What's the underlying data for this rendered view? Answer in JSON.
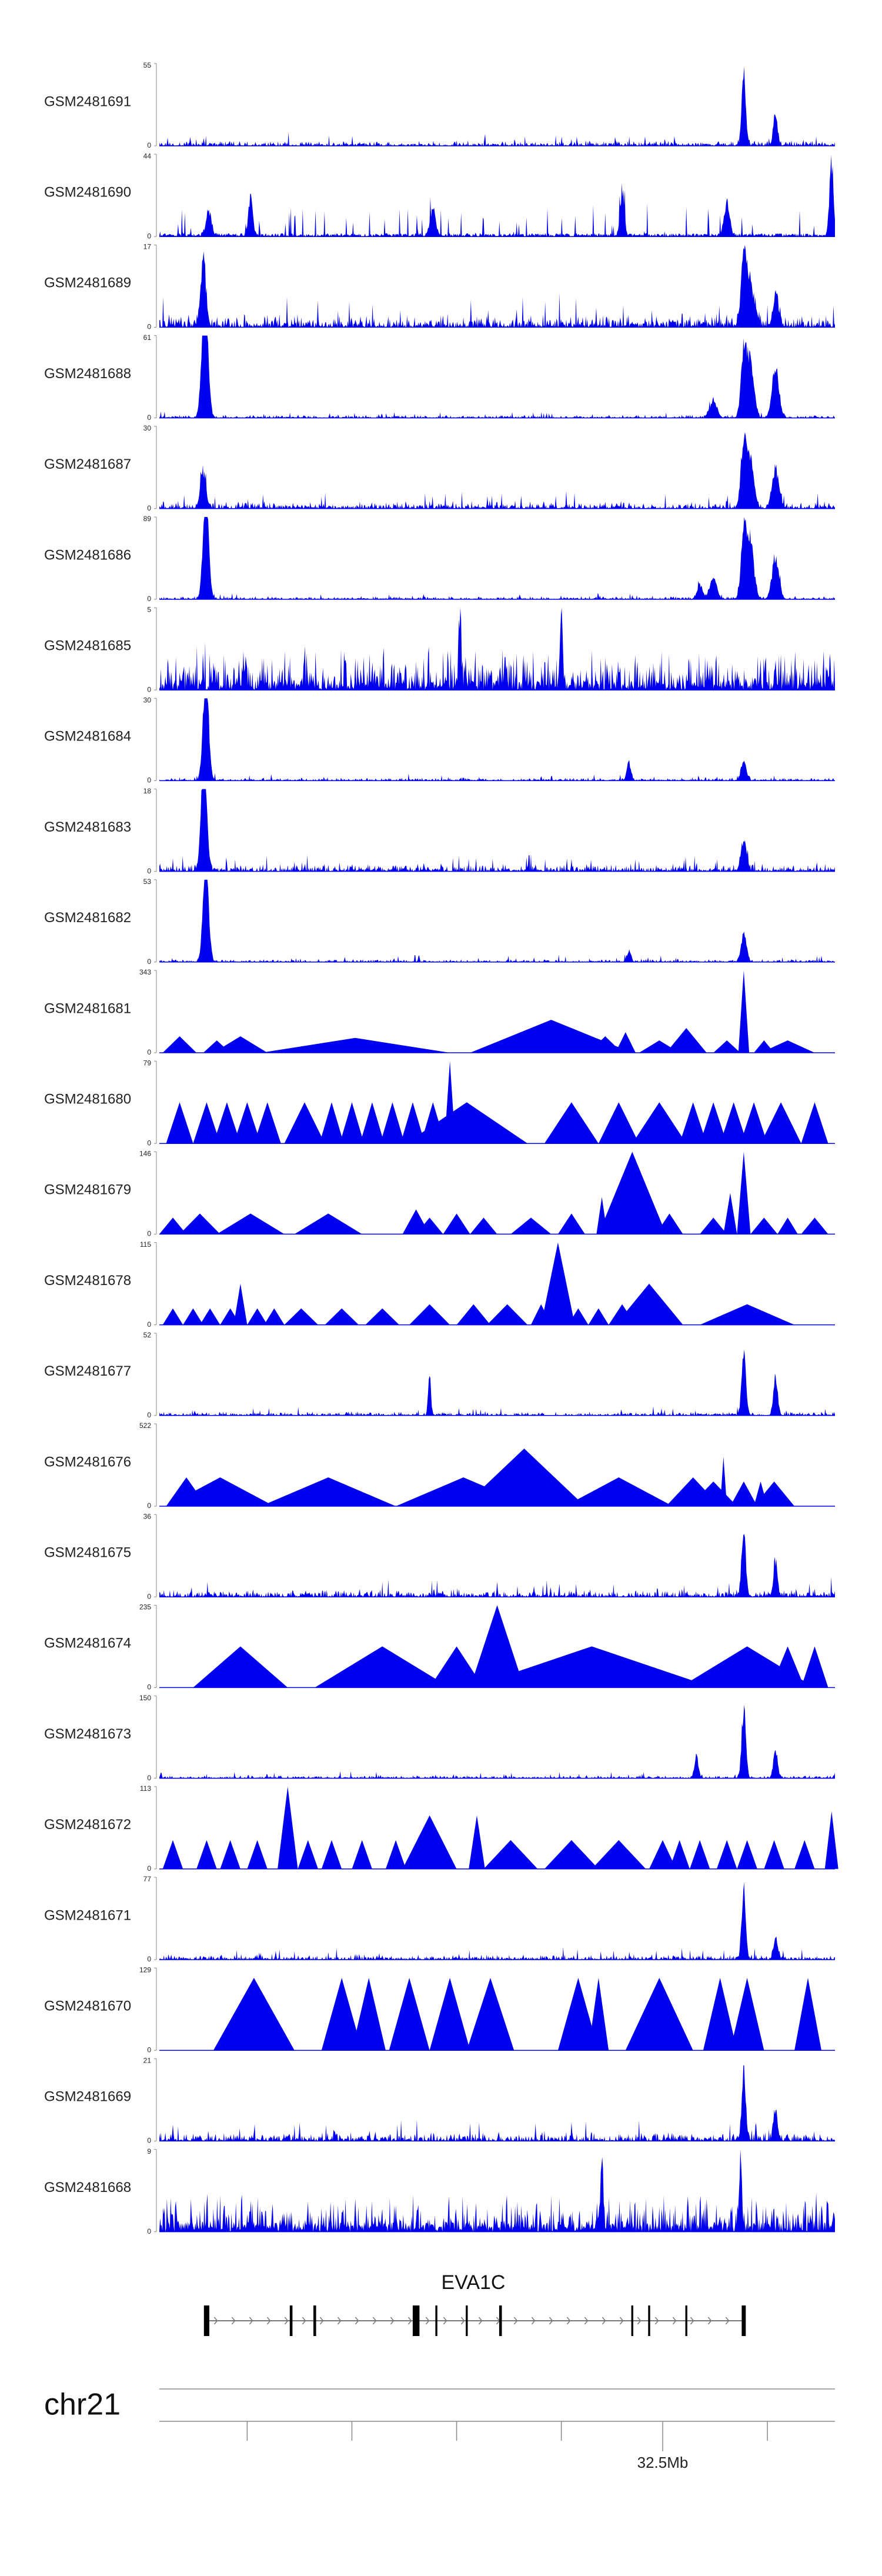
{
  "chart_data": {
    "type": "area",
    "title": "",
    "colors": {
      "signal": "#0000ee",
      "axis": "#888888",
      "text": "#222222"
    },
    "tracks": [
      {
        "name": "GSM2481691",
        "ymax": "55",
        "ymin": "0",
        "style": "dense",
        "noise": 0.07,
        "peaks": [
          [
            0.865,
            1.0,
            0.003
          ],
          [
            0.912,
            0.45,
            0.003
          ]
        ]
      },
      {
        "name": "GSM2481690",
        "ymax": "44",
        "ymin": "0",
        "style": "spiky",
        "noise": 0.25,
        "peaks": [
          [
            0.073,
            0.35,
            0.004
          ],
          [
            0.135,
            0.55,
            0.003
          ],
          [
            0.405,
            0.35,
            0.004
          ],
          [
            0.685,
            0.6,
            0.003
          ],
          [
            0.84,
            0.45,
            0.004
          ],
          [
            0.995,
            1.0,
            0.003
          ]
        ]
      },
      {
        "name": "GSM2481689",
        "ymax": "17",
        "ymin": "0",
        "style": "dense",
        "noise": 0.18,
        "peaks": [
          [
            0.065,
            0.9,
            0.004
          ],
          [
            0.865,
            0.95,
            0.004
          ],
          [
            0.875,
            0.55,
            0.006
          ],
          [
            0.913,
            0.45,
            0.004
          ]
        ]
      },
      {
        "name": "GSM2481688",
        "ymax": "61",
        "ymin": "0",
        "style": "dense",
        "noise": 0.04,
        "peaks": [
          [
            0.065,
            0.85,
            0.004
          ],
          [
            0.068,
            0.95,
            0.003
          ],
          [
            0.07,
            0.65,
            0.004
          ],
          [
            0.82,
            0.25,
            0.005
          ],
          [
            0.865,
            0.95,
            0.004
          ],
          [
            0.875,
            0.8,
            0.005
          ],
          [
            0.912,
            0.75,
            0.005
          ]
        ]
      },
      {
        "name": "GSM2481687",
        "ymax": "30",
        "ymin": "0",
        "style": "dense",
        "noise": 0.1,
        "peaks": [
          [
            0.065,
            0.5,
            0.004
          ],
          [
            0.865,
            0.95,
            0.004
          ],
          [
            0.875,
            0.65,
            0.005
          ],
          [
            0.912,
            0.55,
            0.005
          ]
        ]
      },
      {
        "name": "GSM2481686",
        "ymax": "89",
        "ymin": "0",
        "style": "dense",
        "noise": 0.04,
        "peaks": [
          [
            0.068,
            0.9,
            0.004
          ],
          [
            0.07,
            0.7,
            0.004
          ],
          [
            0.8,
            0.2,
            0.004
          ],
          [
            0.82,
            0.3,
            0.005
          ],
          [
            0.865,
            0.95,
            0.004
          ],
          [
            0.875,
            0.8,
            0.005
          ],
          [
            0.912,
            0.6,
            0.005
          ]
        ]
      },
      {
        "name": "GSM2481685",
        "ymax": "5",
        "ymin": "0",
        "style": "uniform",
        "noise": 0.6,
        "peaks": [
          [
            0.595,
            1.0,
            0.002
          ],
          [
            0.445,
            0.9,
            0.002
          ]
        ]
      },
      {
        "name": "GSM2481684",
        "ymax": "30",
        "ymin": "0",
        "style": "dense",
        "noise": 0.04,
        "peaks": [
          [
            0.068,
            0.95,
            0.004
          ],
          [
            0.07,
            0.6,
            0.004
          ],
          [
            0.695,
            0.25,
            0.003
          ],
          [
            0.865,
            0.25,
            0.004
          ]
        ]
      },
      {
        "name": "GSM2481683",
        "ymax": "18",
        "ymin": "0",
        "style": "dense",
        "noise": 0.1,
        "peaks": [
          [
            0.065,
            0.95,
            0.004
          ],
          [
            0.068,
            0.6,
            0.004
          ],
          [
            0.865,
            0.4,
            0.004
          ]
        ]
      },
      {
        "name": "GSM2481682",
        "ymax": "53",
        "ymin": "0",
        "style": "dense",
        "noise": 0.04,
        "peaks": [
          [
            0.068,
            0.95,
            0.004
          ],
          [
            0.07,
            0.6,
            0.004
          ],
          [
            0.695,
            0.15,
            0.003
          ],
          [
            0.865,
            0.4,
            0.004
          ]
        ]
      },
      {
        "name": "GSM2481681",
        "ymax": "343",
        "ymin": "0",
        "style": "tri",
        "peaks": [
          [
            0.03,
            0.2,
            0.025
          ],
          [
            0.085,
            0.15,
            0.02
          ],
          [
            0.12,
            0.2,
            0.04
          ],
          [
            0.29,
            0.18,
            0.14
          ],
          [
            0.58,
            0.4,
            0.12
          ],
          [
            0.62,
            0.15,
            0.02
          ],
          [
            0.66,
            0.2,
            0.025
          ],
          [
            0.69,
            0.25,
            0.015
          ],
          [
            0.74,
            0.15,
            0.03
          ],
          [
            0.78,
            0.3,
            0.03
          ],
          [
            0.84,
            0.15,
            0.02
          ],
          [
            0.865,
            1.0,
            0.008
          ],
          [
            0.895,
            0.15,
            0.015
          ],
          [
            0.93,
            0.15,
            0.04
          ]
        ]
      },
      {
        "name": "GSM2481680",
        "ymax": "79",
        "ymin": "0",
        "style": "tri",
        "peaks": [
          [
            0.03,
            0.5,
            0.02
          ],
          [
            0.07,
            0.5,
            0.02
          ],
          [
            0.1,
            0.5,
            0.02
          ],
          [
            0.13,
            0.5,
            0.02
          ],
          [
            0.16,
            0.5,
            0.02
          ],
          [
            0.215,
            0.5,
            0.03
          ],
          [
            0.255,
            0.5,
            0.018
          ],
          [
            0.285,
            0.5,
            0.018
          ],
          [
            0.315,
            0.5,
            0.018
          ],
          [
            0.345,
            0.5,
            0.018
          ],
          [
            0.375,
            0.5,
            0.018
          ],
          [
            0.405,
            0.5,
            0.018
          ],
          [
            0.43,
            1.0,
            0.008
          ],
          [
            0.455,
            0.5,
            0.09
          ],
          [
            0.61,
            0.5,
            0.04
          ],
          [
            0.68,
            0.5,
            0.03
          ],
          [
            0.74,
            0.5,
            0.04
          ],
          [
            0.79,
            0.5,
            0.02
          ],
          [
            0.82,
            0.5,
            0.02
          ],
          [
            0.85,
            0.5,
            0.02
          ],
          [
            0.88,
            0.5,
            0.02
          ],
          [
            0.92,
            0.5,
            0.03
          ],
          [
            0.97,
            0.5,
            0.02
          ]
        ]
      },
      {
        "name": "GSM2481679",
        "ymax": "146",
        "ymin": "0",
        "style": "tri",
        "peaks": [
          [
            0.02,
            0.2,
            0.02
          ],
          [
            0.06,
            0.25,
            0.03
          ],
          [
            0.135,
            0.25,
            0.05
          ],
          [
            0.25,
            0.25,
            0.05
          ],
          [
            0.38,
            0.3,
            0.02
          ],
          [
            0.4,
            0.2,
            0.02
          ],
          [
            0.44,
            0.25,
            0.02
          ],
          [
            0.48,
            0.2,
            0.02
          ],
          [
            0.55,
            0.2,
            0.03
          ],
          [
            0.61,
            0.25,
            0.02
          ],
          [
            0.655,
            0.45,
            0.008
          ],
          [
            0.675,
            0.2,
            0.015
          ],
          [
            0.7,
            1.0,
            0.05
          ],
          [
            0.755,
            0.25,
            0.02
          ],
          [
            0.82,
            0.2,
            0.02
          ],
          [
            0.845,
            0.5,
            0.01
          ],
          [
            0.865,
            1.0,
            0.01
          ],
          [
            0.895,
            0.2,
            0.02
          ],
          [
            0.93,
            0.2,
            0.015
          ],
          [
            0.97,
            0.2,
            0.02
          ]
        ]
      },
      {
        "name": "GSM2481678",
        "ymax": "115",
        "ymin": "0",
        "style": "tri",
        "peaks": [
          [
            0.02,
            0.2,
            0.015
          ],
          [
            0.05,
            0.2,
            0.015
          ],
          [
            0.075,
            0.2,
            0.015
          ],
          [
            0.105,
            0.2,
            0.015
          ],
          [
            0.12,
            0.5,
            0.01
          ],
          [
            0.145,
            0.2,
            0.015
          ],
          [
            0.17,
            0.2,
            0.015
          ],
          [
            0.21,
            0.2,
            0.025
          ],
          [
            0.27,
            0.2,
            0.025
          ],
          [
            0.33,
            0.2,
            0.025
          ],
          [
            0.4,
            0.25,
            0.03
          ],
          [
            0.465,
            0.25,
            0.025
          ],
          [
            0.515,
            0.25,
            0.03
          ],
          [
            0.565,
            0.25,
            0.015
          ],
          [
            0.59,
            1.0,
            0.025
          ],
          [
            0.62,
            0.2,
            0.015
          ],
          [
            0.65,
            0.2,
            0.015
          ],
          [
            0.685,
            0.25,
            0.02
          ],
          [
            0.725,
            0.5,
            0.05
          ],
          [
            0.87,
            0.25,
            0.07
          ]
        ]
      },
      {
        "name": "GSM2481677",
        "ymax": "52",
        "ymin": "0",
        "style": "dense",
        "noise": 0.05,
        "peaks": [
          [
            0.4,
            0.5,
            0.002
          ],
          [
            0.865,
            0.95,
            0.003
          ],
          [
            0.912,
            0.55,
            0.003
          ]
        ]
      },
      {
        "name": "GSM2481676",
        "ymax": "522",
        "ymin": "0",
        "style": "tri",
        "peaks": [
          [
            0.04,
            0.35,
            0.03
          ],
          [
            0.09,
            0.35,
            0.08
          ],
          [
            0.25,
            0.35,
            0.1
          ],
          [
            0.45,
            0.35,
            0.1
          ],
          [
            0.51,
            0.35,
            0.04
          ],
          [
            0.54,
            0.7,
            0.09
          ],
          [
            0.68,
            0.35,
            0.08
          ],
          [
            0.79,
            0.35,
            0.04
          ],
          [
            0.82,
            0.3,
            0.035
          ],
          [
            0.835,
            0.6,
            0.005
          ],
          [
            0.865,
            0.3,
            0.02
          ],
          [
            0.89,
            0.3,
            0.01
          ],
          [
            0.91,
            0.3,
            0.03
          ]
        ]
      },
      {
        "name": "GSM2481675",
        "ymax": "36",
        "ymin": "0",
        "style": "dense",
        "noise": 0.1,
        "peaks": [
          [
            0.865,
            0.95,
            0.003
          ],
          [
            0.912,
            0.45,
            0.003
          ]
        ]
      },
      {
        "name": "GSM2481674",
        "ymax": "235",
        "ymin": "0",
        "style": "tri",
        "peaks": [
          [
            0.12,
            0.5,
            0.07
          ],
          [
            0.33,
            0.5,
            0.1
          ],
          [
            0.44,
            0.5,
            0.04
          ],
          [
            0.5,
            1.0,
            0.04
          ],
          [
            0.64,
            0.5,
            0.18
          ],
          [
            0.87,
            0.5,
            0.1
          ],
          [
            0.93,
            0.5,
            0.025
          ],
          [
            0.97,
            0.5,
            0.02
          ]
        ]
      },
      {
        "name": "GSM2481673",
        "ymax": "150",
        "ymin": "0",
        "style": "dense",
        "noise": 0.04,
        "peaks": [
          [
            0.795,
            0.3,
            0.003
          ],
          [
            0.865,
            1.0,
            0.003
          ],
          [
            0.912,
            0.4,
            0.003
          ]
        ]
      },
      {
        "name": "GSM2481672",
        "ymax": "113",
        "ymin": "0",
        "style": "tri",
        "peaks": [
          [
            0.02,
            0.35,
            0.015
          ],
          [
            0.07,
            0.35,
            0.015
          ],
          [
            0.105,
            0.35,
            0.015
          ],
          [
            0.145,
            0.35,
            0.015
          ],
          [
            0.19,
            1.0,
            0.015
          ],
          [
            0.22,
            0.35,
            0.015
          ],
          [
            0.255,
            0.35,
            0.015
          ],
          [
            0.3,
            0.35,
            0.015
          ],
          [
            0.35,
            0.35,
            0.015
          ],
          [
            0.4,
            0.65,
            0.04
          ],
          [
            0.47,
            0.65,
            0.012
          ],
          [
            0.52,
            0.35,
            0.04
          ],
          [
            0.61,
            0.35,
            0.04
          ],
          [
            0.68,
            0.35,
            0.04
          ],
          [
            0.745,
            0.35,
            0.02
          ],
          [
            0.77,
            0.35,
            0.015
          ],
          [
            0.8,
            0.35,
            0.015
          ],
          [
            0.84,
            0.35,
            0.015
          ],
          [
            0.87,
            0.35,
            0.015
          ],
          [
            0.91,
            0.35,
            0.015
          ],
          [
            0.955,
            0.35,
            0.015
          ],
          [
            0.995,
            0.7,
            0.01
          ]
        ]
      },
      {
        "name": "GSM2481671",
        "ymax": "77",
        "ymin": "0",
        "style": "dense",
        "noise": 0.07,
        "peaks": [
          [
            0.865,
            0.95,
            0.003
          ],
          [
            0.912,
            0.3,
            0.003
          ]
        ]
      },
      {
        "name": "GSM2481670",
        "ymax": "129",
        "ymin": "0",
        "style": "tri",
        "peaks": [
          [
            0.14,
            0.88,
            0.06
          ],
          [
            0.27,
            0.88,
            0.03
          ],
          [
            0.31,
            0.88,
            0.025
          ],
          [
            0.37,
            0.88,
            0.03
          ],
          [
            0.43,
            0.88,
            0.03
          ],
          [
            0.49,
            0.88,
            0.035
          ],
          [
            0.62,
            0.88,
            0.03
          ],
          [
            0.65,
            0.88,
            0.015
          ],
          [
            0.74,
            0.88,
            0.05
          ],
          [
            0.83,
            0.88,
            0.025
          ],
          [
            0.87,
            0.88,
            0.025
          ],
          [
            0.96,
            0.88,
            0.02
          ]
        ]
      },
      {
        "name": "GSM2481669",
        "ymax": "21",
        "ymin": "0",
        "style": "dense",
        "noise": 0.12,
        "peaks": [
          [
            0.865,
            0.95,
            0.003
          ],
          [
            0.912,
            0.45,
            0.003
          ]
        ]
      },
      {
        "name": "GSM2481668",
        "ymax": "9",
        "ymin": "0",
        "style": "uniform",
        "noise": 0.5,
        "peaks": [
          [
            0.655,
            1.0,
            0.002
          ],
          [
            0.86,
            0.9,
            0.002
          ]
        ]
      }
    ],
    "gene": {
      "name": "EVA1C",
      "strand": "+",
      "start": 0.07,
      "end": 0.865,
      "exons": [
        [
          0.07,
          0.008
        ],
        [
          0.195,
          0.004
        ],
        [
          0.23,
          0.004
        ],
        [
          0.38,
          0.01
        ],
        [
          0.41,
          0.003
        ],
        [
          0.455,
          0.003
        ],
        [
          0.505,
          0.004
        ],
        [
          0.7,
          0.003
        ],
        [
          0.725,
          0.003
        ],
        [
          0.78,
          0.003
        ],
        [
          0.865,
          0.006
        ]
      ]
    },
    "chrom": {
      "name": "chr21",
      "ticks": [
        0.13,
        0.285,
        0.44,
        0.595,
        0.745,
        0.9
      ],
      "labeled_tick": {
        "pos": 0.745,
        "label": "32.5Mb"
      }
    }
  }
}
